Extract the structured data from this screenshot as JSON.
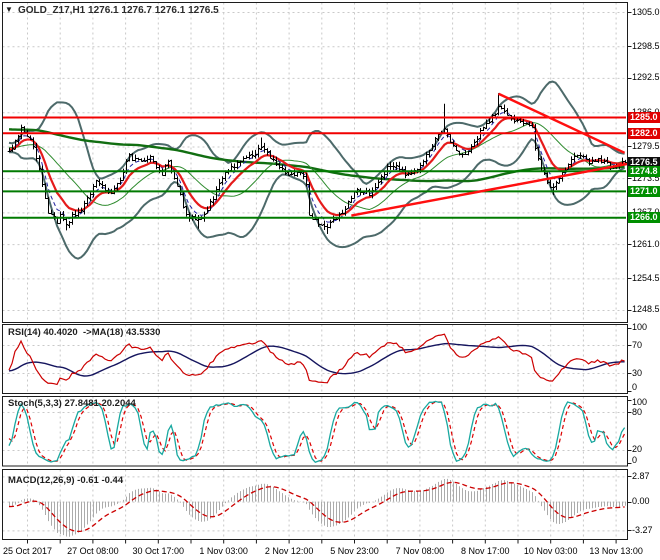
{
  "title": {
    "dropdown_icon": "▼",
    "text": "GOLD_Z17,H1 1276.1 1276.7 1276.1 1276.5",
    "symbol": "GOLD_Z17",
    "timeframe": "H1",
    "open": "1276.1",
    "high": "1276.7",
    "low": "1276.1",
    "close": "1276.5"
  },
  "panel_labels": {
    "rsi": "RSI(14) 40.4020  ->MA(18) 43.5330",
    "stoch": "Stoch(5,3,3) 27.8481 20.2044",
    "macd": "MACD(12,26,9) -0.61 -0.44"
  },
  "price_axis": {
    "labels": [
      "1305.0",
      "1298.5",
      "1292.5",
      "1286.0",
      "1279.5",
      "1273.5",
      "1267.0",
      "1261.0",
      "1254.5",
      "1248.5"
    ],
    "badges": [
      {
        "text": "1285.0",
        "value": 1285.0,
        "bg": "#df0000"
      },
      {
        "text": "1282.0",
        "value": 1282.0,
        "bg": "#df0000"
      },
      {
        "text": "1276.5",
        "value": 1276.5,
        "bg": "#0d0d0d"
      },
      {
        "text": "1274.8",
        "value": 1274.8,
        "bg": "#008f00"
      },
      {
        "text": "1271.0",
        "value": 1271.0,
        "bg": "#008f00"
      },
      {
        "text": "1266.0",
        "value": 1266.0,
        "bg": "#008f00"
      }
    ]
  },
  "rsi_axis": [
    "100",
    "70",
    "30",
    "0"
  ],
  "stoch_axis": [
    "100",
    "80",
    "20",
    "0"
  ],
  "macd_axis": [
    "2.87",
    "0.00",
    "-3.27"
  ],
  "time_axis": {
    "labels": [
      "25 Oct 2017",
      "27 Oct 08:00",
      "30 Oct 17:00",
      "1 Nov 03:00",
      "2 Nov 12:00",
      "5 Nov 23:00",
      "7 Nov 08:00",
      "8 Nov 17:00",
      "10 Nov 03:00",
      "13 Nov 13:00"
    ]
  },
  "colors": {
    "grid": "#c9c9c9",
    "bar": "#000000",
    "border": "#1c1c1c",
    "bollinger": "#4d6a6a",
    "ma_slow_green": "#116e11",
    "ma_thin_green": "#2e8b2e",
    "ma_red": "#e51b1b",
    "ma_navy": "#20209f",
    "level_red": "#f10000",
    "level_green": "#007a00",
    "trendline": "#ff0f0f",
    "rsi_line": "#cc0000",
    "rsi_ma": "#15155e",
    "stoch_k": "#18a8a0",
    "stoch_d": "#dd0000",
    "macd_hist": "#ababab",
    "macd_signal": "#cc0000"
  },
  "chart_data": [
    {
      "id": "price",
      "type": "line",
      "render": "ohlc-bars",
      "title": "GOLD_Z17,H1",
      "x_range_bars": 206,
      "x_tick_labels": [
        "25 Oct 2017",
        "27 Oct 08:00",
        "30 Oct 17:00",
        "1 Nov 03:00",
        "2 Nov 12:00",
        "5 Nov 23:00",
        "7 Nov 08:00",
        "8 Nov 17:00",
        "10 Nov 03:00",
        "13 Nov 13:00"
      ],
      "ylim": [
        1245.6,
        1306.9
      ],
      "y_ticks": [
        1305.0,
        1298.5,
        1292.5,
        1286.0,
        1279.5,
        1273.5,
        1267.0,
        1261.0,
        1254.5,
        1248.5
      ],
      "grid": true,
      "last_price": 1276.5,
      "close_keyframes": [
        [
          0,
          1278.6
        ],
        [
          2,
          1280.3
        ],
        [
          4,
          1283.4
        ],
        [
          7,
          1281.0
        ],
        [
          9,
          1277.5
        ],
        [
          11,
          1272.5
        ],
        [
          13,
          1267.2
        ],
        [
          16,
          1265.4
        ],
        [
          17,
          1266.8
        ],
        [
          19,
          1264.6
        ],
        [
          21,
          1266.2
        ],
        [
          23,
          1267.0
        ],
        [
          27,
          1270.5
        ],
        [
          29,
          1273.0
        ],
        [
          32,
          1271.2
        ],
        [
          34,
          1270.4
        ],
        [
          37,
          1273.5
        ],
        [
          40,
          1277.8
        ],
        [
          43,
          1276.8
        ],
        [
          47,
          1277.6
        ],
        [
          49,
          1275.3
        ],
        [
          51,
          1274.6
        ],
        [
          53,
          1276.6
        ],
        [
          56,
          1272.5
        ],
        [
          58,
          1268.0
        ],
        [
          60,
          1266.2
        ],
        [
          63,
          1265.4
        ],
        [
          65,
          1266.8
        ],
        [
          68,
          1270.0
        ],
        [
          71,
          1273.5
        ],
        [
          74,
          1275.5
        ],
        [
          78,
          1277.3
        ],
        [
          82,
          1278.2
        ],
        [
          84,
          1279.8
        ],
        [
          87,
          1277.5
        ],
        [
          90,
          1275.5
        ],
        [
          94,
          1274.2
        ],
        [
          97,
          1274.8
        ],
        [
          99,
          1272.5
        ],
        [
          100,
          1266.8
        ],
        [
          103,
          1265.0
        ],
        [
          106,
          1264.6
        ],
        [
          108,
          1265.5
        ],
        [
          110,
          1266.5
        ],
        [
          113,
          1269.0
        ],
        [
          116,
          1271.5
        ],
        [
          120,
          1270.5
        ],
        [
          123,
          1273.0
        ],
        [
          126,
          1275.5
        ],
        [
          129,
          1276.2
        ],
        [
          132,
          1274.2
        ],
        [
          135,
          1274.8
        ],
        [
          137,
          1276.0
        ],
        [
          140,
          1279.0
        ],
        [
          143,
          1281.5
        ],
        [
          145,
          1283.2
        ],
        [
          147,
          1280.5
        ],
        [
          150,
          1278.5
        ],
        [
          152,
          1277.8
        ],
        [
          155,
          1280.0
        ],
        [
          157,
          1282.5
        ],
        [
          160,
          1284.5
        ],
        [
          163,
          1286.8
        ],
        [
          165,
          1285.8
        ],
        [
          168,
          1284.8
        ],
        [
          171,
          1284.2
        ],
        [
          174,
          1283.2
        ],
        [
          175,
          1279.5
        ],
        [
          177,
          1275.2
        ],
        [
          179,
          1273.0
        ],
        [
          181,
          1271.5
        ],
        [
          183,
          1273.5
        ],
        [
          185,
          1275.5
        ],
        [
          187,
          1277.2
        ],
        [
          190,
          1277.8
        ],
        [
          193,
          1276.5
        ],
        [
          196,
          1277.0
        ],
        [
          199,
          1276.2
        ],
        [
          201,
          1275.6
        ],
        [
          203,
          1276.2
        ],
        [
          205,
          1276.5
        ]
      ],
      "wicks": [
        {
          "b": 19,
          "lo": 1263.6
        },
        {
          "b": 63,
          "lo": 1263.9
        },
        {
          "b": 106,
          "lo": 1262.9
        },
        {
          "b": 84,
          "hi": 1281.2
        },
        {
          "b": 145,
          "hi": 1287.6
        },
        {
          "b": 163,
          "hi": 1289.6
        },
        {
          "b": 181,
          "lo": 1270.3
        }
      ],
      "levels": [
        {
          "price": 1285.0,
          "color": "red"
        },
        {
          "price": 1282.0,
          "color": "red"
        },
        {
          "price": 1274.8,
          "color": "green"
        },
        {
          "price": 1271.0,
          "color": "green"
        },
        {
          "price": 1266.0,
          "color": "green"
        }
      ],
      "trendlines": [
        {
          "dir": "down",
          "from": [
            163,
            1289.5
          ],
          "to": [
            205,
            1278.3
          ]
        },
        {
          "dir": "up",
          "from": [
            114,
            1266.4
          ],
          "to": [
            206,
            1276.2
          ]
        }
      ],
      "overlays": [
        {
          "name": "Bollinger Bands",
          "period": 20,
          "deviation": 2
        },
        {
          "name": "MA slow",
          "period": 144
        },
        {
          "name": "MA medium",
          "period": 21
        },
        {
          "name": "MA fast red",
          "period": 10,
          "method": "ema"
        },
        {
          "name": "MA fast navy",
          "period": 5,
          "method": "ema",
          "dashed": true
        }
      ]
    },
    {
      "id": "rsi",
      "type": "line",
      "label": "RSI(14) 40.4020 ->MA(18) 43.5330",
      "computed_from": "price.close",
      "period": 14,
      "ma_period": 18,
      "current": {
        "rsi": 40.402,
        "ma": 43.533
      },
      "ylim": [
        0,
        100
      ],
      "y_ticks": [
        100,
        70,
        30,
        0
      ],
      "gridlines": [
        70,
        30
      ]
    },
    {
      "id": "stoch",
      "type": "line",
      "label": "Stoch(5,3,3) 27.8481 20.2044",
      "computed_from": "price",
      "params": [
        5,
        3,
        3
      ],
      "current": {
        "k": 27.8481,
        "d": 20.2044
      },
      "ylim": [
        0,
        100
      ],
      "y_ticks": [
        100,
        80,
        20,
        0
      ],
      "gridlines": [
        80,
        20
      ]
    },
    {
      "id": "macd",
      "type": "bar",
      "label": "MACD(12,26,9) -0.61 -0.44",
      "computed_from": "price.close",
      "params": [
        12,
        26,
        9
      ],
      "current": {
        "macd": -0.61,
        "signal": -0.44
      },
      "y_ticks": [
        2.87,
        0.0,
        -3.27
      ],
      "gridlines": [
        2.87,
        0,
        -3.27
      ]
    }
  ]
}
